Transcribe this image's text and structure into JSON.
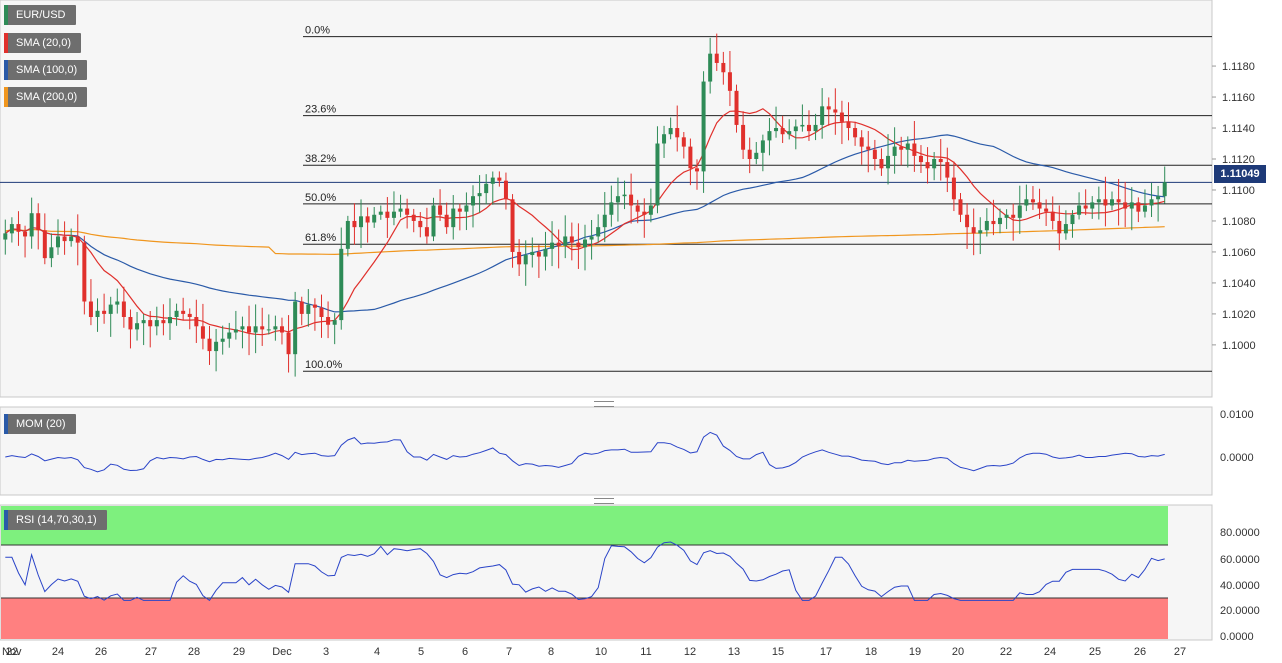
{
  "instrument": "EUR/USD",
  "legends": [
    {
      "label": "EUR/USD",
      "color": "#2e8b57"
    },
    {
      "label": "SMA (20,0)",
      "color": "#e0302c"
    },
    {
      "label": "SMA (100,0)",
      "color": "#2a5aa8"
    },
    {
      "label": "SMA (200,0)",
      "color": "#f0961e"
    }
  ],
  "momentum_label": "MOM (20)",
  "rsi_label": "RSI (14,70,30,1)",
  "last_price": "1.11049",
  "chart_data": {
    "type": "candlestick",
    "x_tick_labels": [
      "Nov",
      "22",
      "24",
      "26",
      "27",
      "28",
      "29",
      "Dec",
      "3",
      "4",
      "5",
      "6",
      "7",
      "8",
      "10",
      "11",
      "12",
      "13",
      "15",
      "17",
      "18",
      "19",
      "20",
      "22",
      "24",
      "25",
      "26",
      "27"
    ],
    "y_tick_labels": [
      "1.1000",
      "1.1020",
      "1.1040",
      "1.1060",
      "1.1080",
      "1.1100",
      "1.1120",
      "1.1140",
      "1.1160",
      "1.1180"
    ],
    "ylim": [
      1.0967,
      1.1222
    ],
    "fibonacci": [
      {
        "label": "0.0%",
        "value": 1.1199
      },
      {
        "label": "23.6%",
        "value": 1.1148
      },
      {
        "label": "38.2%",
        "value": 1.1116
      },
      {
        "label": "50.0%",
        "value": 1.1091
      },
      {
        "label": "61.8%",
        "value": 1.1065
      },
      {
        "label": "100.0%",
        "value": 1.0983
      }
    ],
    "current_price_line": 1.11049,
    "closes": [
      1.1072,
      1.1078,
      1.1073,
      1.107,
      1.1085,
      1.1074,
      1.1056,
      1.1063,
      1.107,
      1.1067,
      1.107,
      1.1066,
      1.1028,
      1.1018,
      1.1022,
      1.102,
      1.1026,
      1.1028,
      1.1018,
      1.101,
      1.1014,
      1.1016,
      1.1012,
      1.1016,
      1.1014,
      1.1018,
      1.1022,
      1.102,
      1.1018,
      1.1012,
      1.1004,
      1.0996,
      1.1002,
      1.1004,
      1.1008,
      1.101,
      1.1012,
      1.1008,
      1.1012,
      1.101,
      1.101,
      1.1012,
      1.1008,
      1.0994,
      1.1028,
      1.102,
      1.1026,
      1.1024,
      1.1018,
      1.1013,
      1.1016,
      1.1062,
      1.108,
      1.1076,
      1.1083,
      1.1079,
      1.1084,
      1.1086,
      1.1082,
      1.1086,
      1.1088,
      1.1084,
      1.108,
      1.1076,
      1.107,
      1.109,
      1.1084,
      1.1076,
      1.1088,
      1.1086,
      1.109,
      1.1096,
      1.1098,
      1.1104,
      1.1108,
      1.1106,
      1.1094,
      1.106,
      1.1052,
      1.1058,
      1.106,
      1.1057,
      1.1062,
      1.1066,
      1.1064,
      1.107,
      1.1066,
      1.1063,
      1.1068,
      1.107,
      1.1076,
      1.1084,
      1.1092,
      1.1096,
      1.1097,
      1.109,
      1.1086,
      1.1084,
      1.109,
      1.113,
      1.1136,
      1.114,
      1.1134,
      1.1128,
      1.1114,
      1.1112,
      1.117,
      1.1188,
      1.1182,
      1.1176,
      1.1164,
      1.1142,
      1.1126,
      1.112,
      1.1124,
      1.1132,
      1.1138,
      1.114,
      1.1136,
      1.1138,
      1.1141,
      1.1142,
      1.1138,
      1.1142,
      1.1154,
      1.1152,
      1.115,
      1.1144,
      1.114,
      1.1134,
      1.1128,
      1.1126,
      1.112,
      1.1114,
      1.1122,
      1.1128,
      1.1126,
      1.113,
      1.1122,
      1.1118,
      1.1114,
      1.112,
      1.1118,
      1.1108,
      1.1094,
      1.1084,
      1.1076,
      1.1072,
      1.1074,
      1.108,
      1.1078,
      1.1082,
      1.1084,
      1.1082,
      1.109,
      1.1094,
      1.1092,
      1.1088,
      1.1086,
      1.108,
      1.1072,
      1.1078,
      1.1084,
      1.109,
      1.1088,
      1.1092,
      1.1094,
      1.109,
      1.1094,
      1.1092,
      1.1088,
      1.1092,
      1.1086,
      1.109,
      1.1094,
      1.1096,
      1.1105
    ]
  }
}
